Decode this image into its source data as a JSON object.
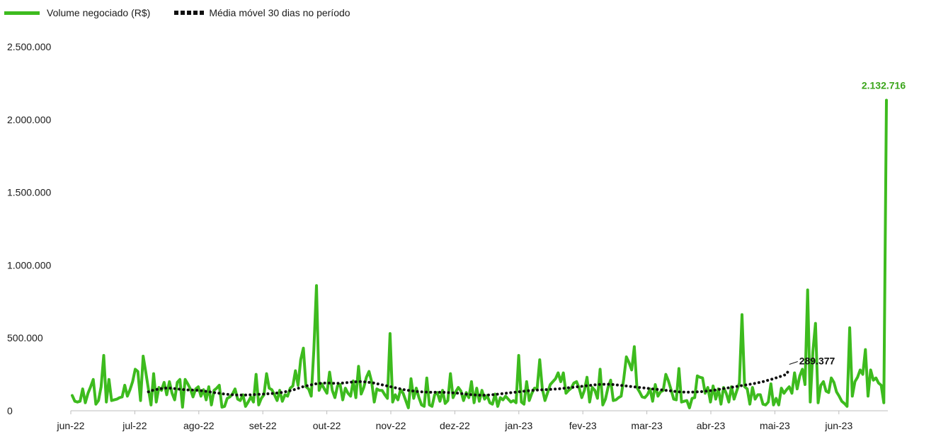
{
  "legend": {
    "volume_label": "Volume negociado (R$)",
    "ma_label": "Média móvel 30 dias no período"
  },
  "colors": {
    "volume": "#3dbb1e",
    "moving_average": "#111111",
    "peak_label": "#3aa51a"
  },
  "chart_data": {
    "type": "line",
    "title": "",
    "xlabel": "",
    "ylabel": "",
    "ylim": [
      0,
      2500000
    ],
    "y_ticks": [
      0,
      500000,
      1000000,
      1500000,
      2000000,
      2500000
    ],
    "y_tick_labels": [
      "0",
      "500.000",
      "1.000.000",
      "1.500.000",
      "2.000.000",
      "2.500.000"
    ],
    "x_tick_labels": [
      "jun-22",
      "jul-22",
      "ago-22",
      "set-22",
      "out-22",
      "nov-22",
      "dez-22",
      "jan-23",
      "fev-23",
      "mar-23",
      "abr-23",
      "mai-23",
      "jun-23"
    ],
    "grid": false,
    "legend_position": "top-left",
    "annotations": {
      "peak": "2.132.716",
      "last_moving_average": "289.377"
    },
    "series": [
      {
        "name": "Volume negociado (R$)",
        "style": "solid",
        "values": [
          105000,
          65000,
          60000,
          65000,
          150000,
          55000,
          120000,
          165000,
          215000,
          45000,
          70000,
          165000,
          380000,
          60000,
          215000,
          70000,
          75000,
          80000,
          90000,
          95000,
          175000,
          100000,
          145000,
          200000,
          285000,
          270000,
          70000,
          375000,
          265000,
          150000,
          40000,
          255000,
          60000,
          160000,
          140000,
          195000,
          110000,
          200000,
          120000,
          75000,
          195000,
          215000,
          25000,
          215000,
          185000,
          150000,
          95000,
          150000,
          165000,
          100000,
          145000,
          75000,
          165000,
          40000,
          140000,
          155000,
          175000,
          25000,
          30000,
          85000,
          95000,
          115000,
          150000,
          80000,
          70000,
          110000,
          30000,
          60000,
          95000,
          60000,
          250000,
          40000,
          85000,
          110000,
          255000,
          155000,
          145000,
          110000,
          70000,
          140000,
          65000,
          110000,
          100000,
          155000,
          170000,
          275000,
          175000,
          350000,
          430000,
          165000,
          150000,
          100000,
          420000,
          860000,
          140000,
          185000,
          150000,
          120000,
          265000,
          140000,
          90000,
          170000,
          180000,
          75000,
          155000,
          120000,
          100000,
          205000,
          90000,
          305000,
          115000,
          160000,
          230000,
          270000,
          200000,
          60000,
          150000,
          140000,
          140000,
          110000,
          85000,
          530000,
          60000,
          110000,
          75000,
          145000,
          120000,
          70000,
          20000,
          220000,
          85000,
          155000,
          90000,
          40000,
          30000,
          225000,
          40000,
          30000,
          110000,
          125000,
          65000,
          140000,
          50000,
          70000,
          255000,
          90000,
          130000,
          160000,
          135000,
          70000,
          125000,
          90000,
          200000,
          55000,
          155000,
          65000,
          140000,
          80000,
          105000,
          55000,
          45000,
          115000,
          30000,
          90000,
          75000,
          100000,
          80000,
          60000,
          70000,
          55000,
          380000,
          60000,
          45000,
          200000,
          70000,
          120000,
          155000,
          150000,
          350000,
          150000,
          70000,
          125000,
          180000,
          200000,
          220000,
          260000,
          200000,
          260000,
          120000,
          140000,
          155000,
          190000,
          200000,
          155000,
          90000,
          140000,
          230000,
          60000,
          160000,
          140000,
          85000,
          285000,
          40000,
          80000,
          160000,
          210000,
          70000,
          75000,
          90000,
          100000,
          220000,
          370000,
          330000,
          280000,
          440000,
          160000,
          130000,
          95000,
          90000,
          110000,
          150000,
          65000,
          180000,
          100000,
          130000,
          140000,
          250000,
          205000,
          145000,
          80000,
          75000,
          290000,
          60000,
          65000,
          70000,
          20000,
          85000,
          90000,
          240000,
          230000,
          225000,
          120000,
          160000,
          60000,
          170000,
          80000,
          150000,
          45000,
          160000,
          120000,
          60000,
          165000,
          80000,
          135000,
          190000,
          660000,
          165000,
          150000,
          45000,
          160000,
          80000,
          110000,
          110000,
          45000,
          40000,
          60000,
          185000,
          40000,
          85000,
          40000,
          155000,
          120000,
          145000,
          165000,
          120000,
          260000,
          150000,
          240000,
          285000,
          180000,
          830000,
          60000,
          405000,
          600000,
          55000,
          175000,
          200000,
          135000,
          125000,
          225000,
          195000,
          130000,
          100000,
          65000,
          50000,
          30000,
          570000,
          100000,
          200000,
          230000,
          280000,
          250000,
          420000,
          100000,
          280000,
          210000,
          225000,
          190000,
          175000,
          55000,
          2132716
        ]
      },
      {
        "name": "Média móvel 30 dias no período",
        "style": "dotted",
        "values": [
          null,
          null,
          null,
          null,
          null,
          null,
          null,
          null,
          null,
          null,
          null,
          null,
          null,
          null,
          null,
          null,
          null,
          null,
          null,
          null,
          null,
          null,
          null,
          null,
          null,
          null,
          null,
          null,
          null,
          130000,
          137000,
          142000,
          146000,
          149000,
          152000,
          155000,
          156000,
          155000,
          154000,
          152000,
          150000,
          148000,
          146000,
          144000,
          143000,
          142000,
          142000,
          141000,
          140000,
          138000,
          136000,
          133000,
          131000,
          128000,
          125000,
          122000,
          120000,
          117000,
          115000,
          113000,
          111000,
          110000,
          109000,
          108000,
          108000,
          108000,
          108000,
          109000,
          110000,
          111000,
          112000,
          113000,
          114000,
          115000,
          116000,
          117000,
          118000,
          120000,
          122000,
          124000,
          126000,
          130000,
          134000,
          138000,
          142000,
          148000,
          154000,
          160000,
          166000,
          170000,
          174000,
          178000,
          182000,
          186000,
          188000,
          189000,
          190000,
          190000,
          190000,
          189000,
          188000,
          188000,
          189000,
          190000,
          192000,
          194000,
          196000,
          198000,
          199000,
          200000,
          200000,
          199000,
          197000,
          195000,
          193000,
          190000,
          186000,
          182000,
          178000,
          174000,
          170000,
          166000,
          162000,
          158000,
          154000,
          150000,
          146000,
          143000,
          140000,
          137000,
          135000,
          133000,
          131000,
          130000,
          129000,
          128000,
          127000,
          127000,
          127000,
          127000,
          127000,
          127000,
          126000,
          125000,
          124000,
          123000,
          122000,
          120000,
          118000,
          116000,
          114000,
          112000,
          110000,
          109000,
          108000,
          107000,
          107000,
          107000,
          108000,
          109000,
          110000,
          112000,
          114000,
          116000,
          118000,
          120000,
          122000,
          124000,
          126000,
          128000,
          130000,
          132000,
          134000,
          136000,
          138000,
          140000,
          141000,
          142000,
          143000,
          144000,
          145000,
          146000,
          147000,
          148000,
          149000,
          150000,
          152000,
          154000,
          156000,
          158000,
          160000,
          162000,
          164000,
          166000,
          168000,
          170000,
          172000,
          174000,
          176000,
          178000,
          180000,
          181000,
          182000,
          182000,
          182000,
          181000,
          180000,
          178000,
          176000,
          174000,
          172000,
          170000,
          168000,
          166000,
          164000,
          162000,
          160000,
          158000,
          156000,
          154000,
          152000,
          150000,
          148000,
          146000,
          144000,
          142000,
          140000,
          138000,
          136000,
          134000,
          132000,
          130000,
          129000,
          128000,
          128000,
          128000,
          128000,
          129000,
          130000,
          131000,
          132000,
          134000,
          136000,
          138000,
          140000,
          143000,
          146000,
          149000,
          152000,
          155000,
          158000,
          161000,
          164000,
          167000,
          170000,
          173000,
          176000,
          179000,
          182000,
          185000,
          188000,
          192000,
          196000,
          200000,
          205000,
          210000,
          215000,
          220000,
          226000,
          232000,
          238000,
          244000,
          250000,
          289377
        ]
      }
    ]
  }
}
